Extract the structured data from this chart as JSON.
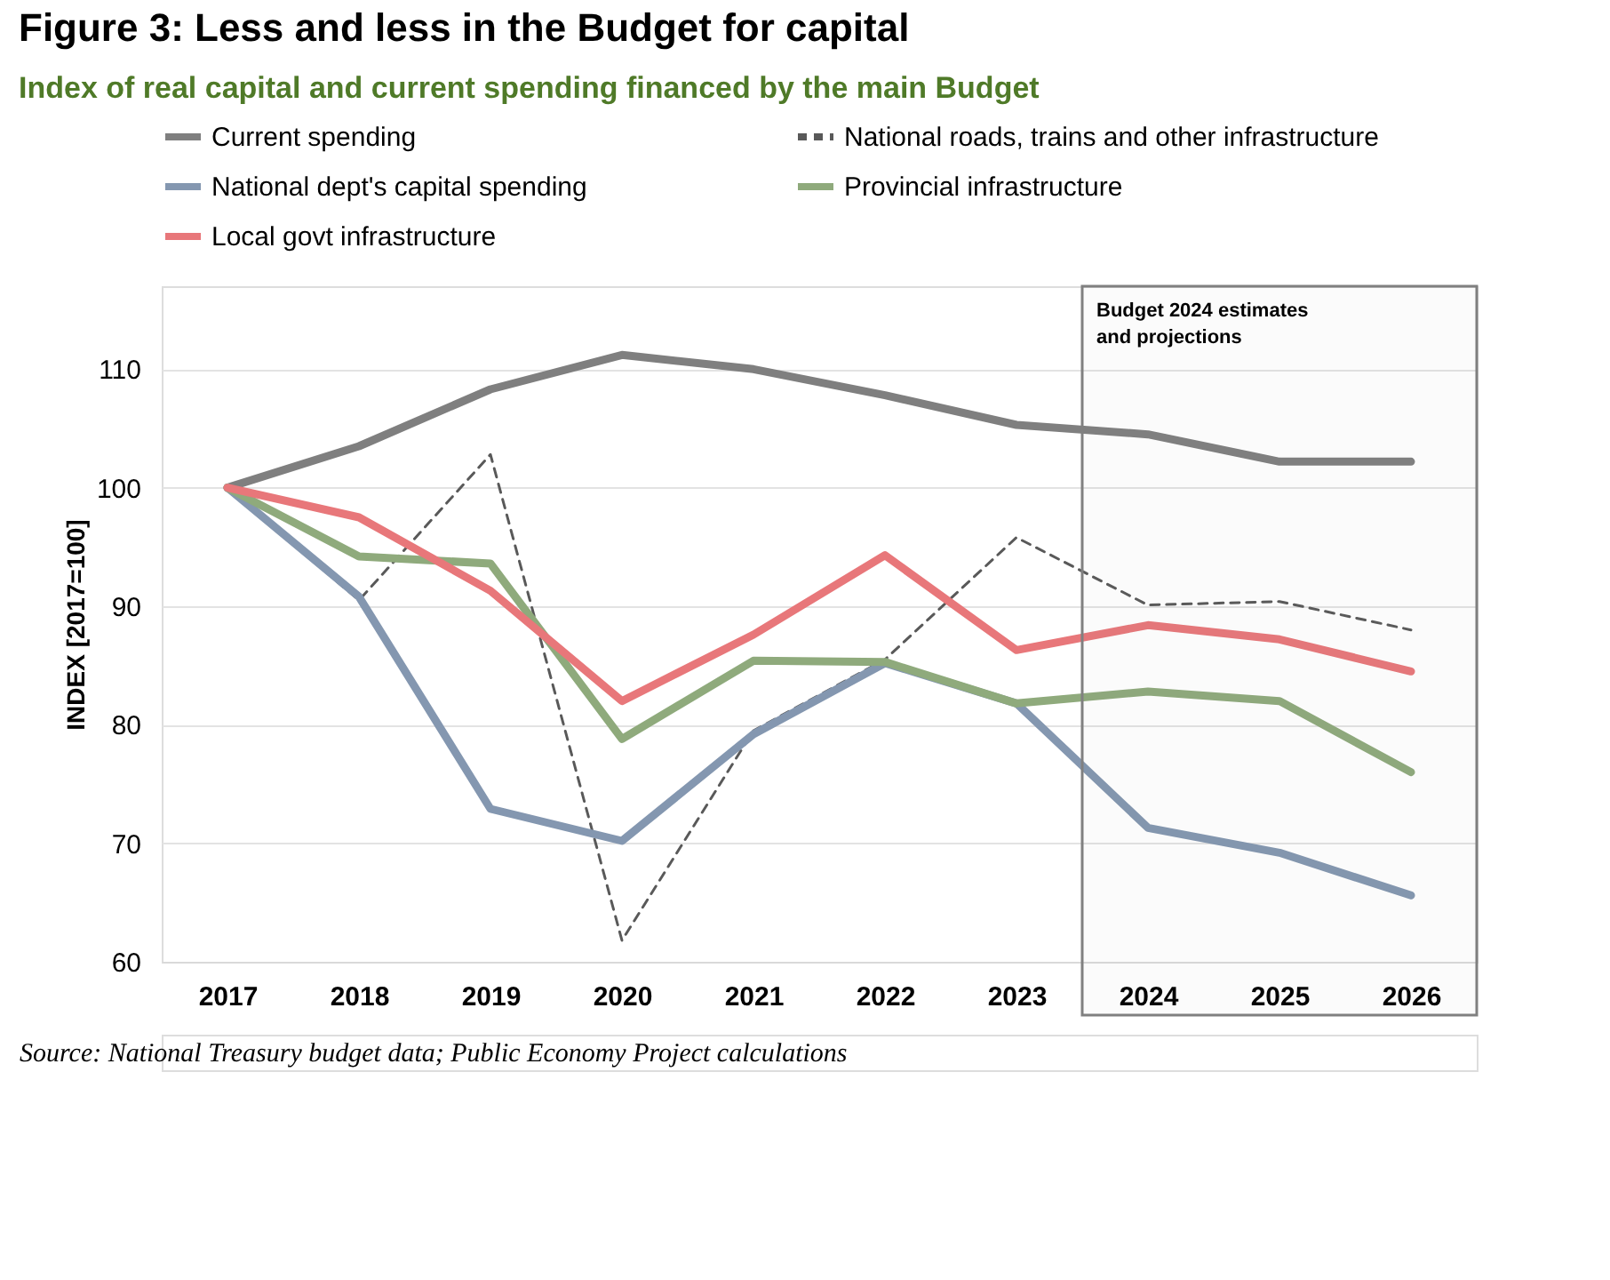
{
  "chart_data": {
    "type": "line",
    "title": "Figure 3: Less and less in the Budget for capital",
    "subtitle": "Index of real capital and current spending financed by the main Budget",
    "ylabel": "INDEX [2017=100]",
    "x": [
      2017,
      2018,
      2019,
      2020,
      2021,
      2022,
      2023,
      2024,
      2025,
      2026
    ],
    "xlim": [
      2016.5,
      2026.5
    ],
    "xticks": [
      2017,
      2018,
      2019,
      2020,
      2021,
      2022,
      2023,
      2024,
      2025,
      2026
    ],
    "ylim": [
      60,
      117
    ],
    "yticks": [
      60,
      70,
      80,
      90,
      100,
      110
    ],
    "grid": "y",
    "legend": "top",
    "line_style": "solid",
    "series": [
      {
        "name": "Current spending",
        "color": "#7f7f7f",
        "values": [
          100,
          103.5,
          108.3,
          111.2,
          110,
          107.8,
          105.3,
          104.5,
          102.2,
          102.2
        ]
      },
      {
        "name": "National roads, trains and other infrastructure",
        "color": "#595959",
        "line_style": "dashed",
        "values": [
          100,
          90.5,
          102.8,
          61.8,
          79.5,
          85.5,
          95.8,
          90.1,
          90.4,
          88
        ]
      },
      {
        "name": "National dept's capital spending",
        "color": "#8497b0",
        "values": [
          100,
          90.8,
          72.9,
          70.2,
          79.2,
          85.2,
          81.8,
          71.3,
          69.2,
          65.6
        ]
      },
      {
        "name": "Provincial infrastructure",
        "color": "#8faa7c",
        "values": [
          100,
          94.2,
          93.6,
          78.8,
          85.4,
          85.3,
          81.8,
          82.8,
          82,
          76
        ]
      },
      {
        "name": "Local govt infrastructure",
        "color": "#e8777a",
        "values": [
          100,
          97.5,
          91.3,
          82,
          87.6,
          94.3,
          86.3,
          88.4,
          87.2,
          84.5
        ]
      }
    ],
    "bands": [
      {
        "axis": "x",
        "from": 2023.5,
        "to": 2026.5,
        "label": "Budget 2024 estimates and projections",
        "color": "#808080"
      }
    ],
    "annotations": [
      "Source: National Treasury budget data; Public Economy Project calculations"
    ]
  }
}
